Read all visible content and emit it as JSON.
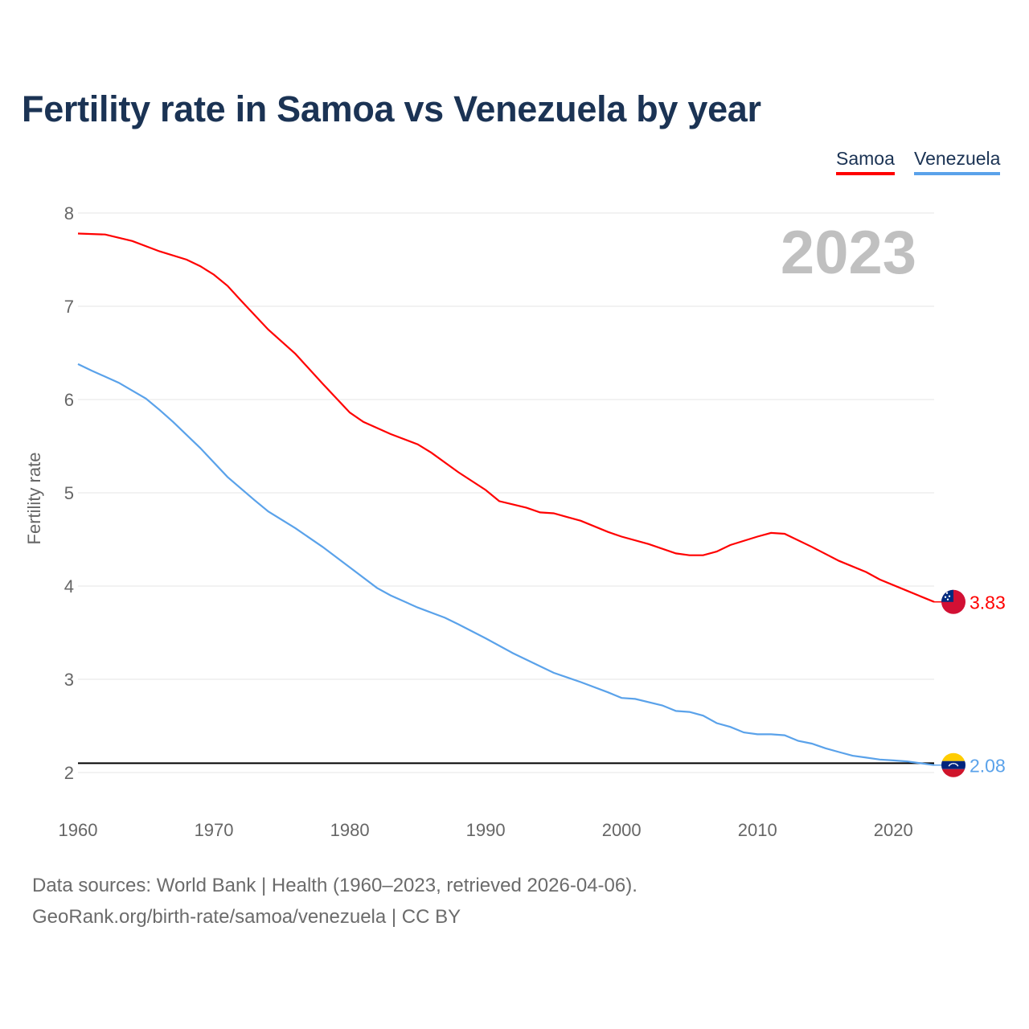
{
  "title": "Fertility rate in Samoa vs Venezuela by year",
  "legend": [
    "Samoa",
    "Venezuela"
  ],
  "year_watermark": "2023",
  "footer": {
    "line1": "Data sources: World Bank | Health (1960–2023, retrieved 2026-04-06).",
    "line2": "GeoRank.org/birth-rate/samoa/venezuela | CC BY"
  },
  "chart_data": {
    "type": "line",
    "title": "Fertility rate in Samoa vs Venezuela by year",
    "xlabel": "",
    "ylabel": "Fertility rate",
    "xlim": [
      1960,
      2023
    ],
    "ylim": [
      2,
      8
    ],
    "xticks": [
      1960,
      1970,
      1980,
      1990,
      2000,
      2010,
      2020
    ],
    "yticks": [
      2,
      3,
      4,
      5,
      6,
      7,
      8
    ],
    "grid": true,
    "legend_position": "top-right",
    "reference_line": 2.1,
    "series": [
      {
        "name": "Samoa",
        "color": "#ff0000",
        "end_label": "3.83",
        "flag": "samoa-flag",
        "points": [
          [
            1960,
            7.78
          ],
          [
            1962,
            7.77
          ],
          [
            1964,
            7.7
          ],
          [
            1966,
            7.59
          ],
          [
            1968,
            7.5
          ],
          [
            1969,
            7.43
          ],
          [
            1970,
            7.34
          ],
          [
            1971,
            7.22
          ],
          [
            1972,
            7.06
          ],
          [
            1974,
            6.75
          ],
          [
            1976,
            6.49
          ],
          [
            1978,
            6.17
          ],
          [
            1980,
            5.86
          ],
          [
            1981,
            5.76
          ],
          [
            1983,
            5.63
          ],
          [
            1985,
            5.52
          ],
          [
            1986,
            5.43
          ],
          [
            1988,
            5.22
          ],
          [
            1990,
            5.03
          ],
          [
            1991,
            4.91
          ],
          [
            1993,
            4.84
          ],
          [
            1994,
            4.79
          ],
          [
            1995,
            4.78
          ],
          [
            1996,
            4.74
          ],
          [
            1997,
            4.7
          ],
          [
            1999,
            4.58
          ],
          [
            2000,
            4.53
          ],
          [
            2002,
            4.45
          ],
          [
            2004,
            4.35
          ],
          [
            2005,
            4.33
          ],
          [
            2006,
            4.33
          ],
          [
            2007,
            4.37
          ],
          [
            2008,
            4.44
          ],
          [
            2010,
            4.53
          ],
          [
            2011,
            4.57
          ],
          [
            2012,
            4.56
          ],
          [
            2014,
            4.42
          ],
          [
            2016,
            4.27
          ],
          [
            2018,
            4.15
          ],
          [
            2019,
            4.07
          ],
          [
            2021,
            3.95
          ],
          [
            2022,
            3.89
          ],
          [
            2023,
            3.83
          ]
        ]
      },
      {
        "name": "Venezuela",
        "color": "#5aa2ea",
        "end_label": "2.08",
        "flag": "venezuela-flag",
        "points": [
          [
            1960,
            6.38
          ],
          [
            1961,
            6.31
          ],
          [
            1963,
            6.18
          ],
          [
            1965,
            6.01
          ],
          [
            1966,
            5.89
          ],
          [
            1967,
            5.76
          ],
          [
            1969,
            5.48
          ],
          [
            1971,
            5.17
          ],
          [
            1973,
            4.92
          ],
          [
            1974,
            4.8
          ],
          [
            1976,
            4.62
          ],
          [
            1978,
            4.42
          ],
          [
            1980,
            4.2
          ],
          [
            1982,
            3.98
          ],
          [
            1983,
            3.9
          ],
          [
            1985,
            3.77
          ],
          [
            1987,
            3.66
          ],
          [
            1988,
            3.59
          ],
          [
            1990,
            3.44
          ],
          [
            1992,
            3.28
          ],
          [
            1994,
            3.14
          ],
          [
            1995,
            3.07
          ],
          [
            1996,
            3.02
          ],
          [
            1997,
            2.97
          ],
          [
            1999,
            2.86
          ],
          [
            2000,
            2.8
          ],
          [
            2001,
            2.79
          ],
          [
            2003,
            2.72
          ],
          [
            2004,
            2.66
          ],
          [
            2005,
            2.65
          ],
          [
            2006,
            2.61
          ],
          [
            2007,
            2.53
          ],
          [
            2008,
            2.49
          ],
          [
            2009,
            2.43
          ],
          [
            2010,
            2.41
          ],
          [
            2011,
            2.41
          ],
          [
            2012,
            2.4
          ],
          [
            2013,
            2.34
          ],
          [
            2014,
            2.31
          ],
          [
            2015,
            2.26
          ],
          [
            2016,
            2.22
          ],
          [
            2017,
            2.18
          ],
          [
            2018,
            2.16
          ],
          [
            2019,
            2.14
          ],
          [
            2020,
            2.13
          ],
          [
            2021,
            2.12
          ],
          [
            2022,
            2.1
          ],
          [
            2023,
            2.08
          ]
        ]
      }
    ]
  }
}
